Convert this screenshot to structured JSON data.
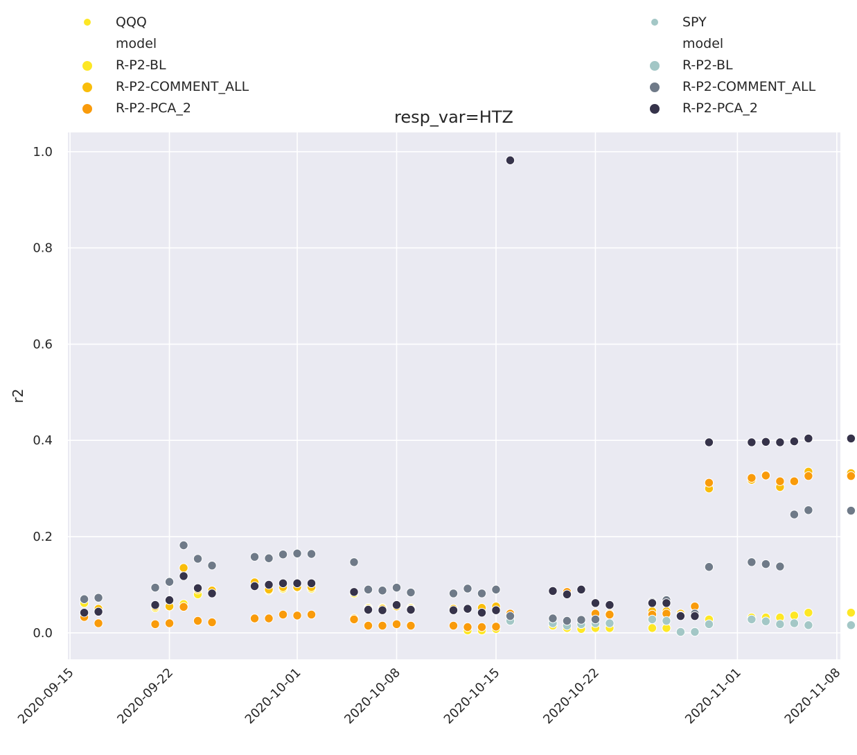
{
  "chart_data": {
    "type": "scatter",
    "title": "resp_var=HTZ",
    "xlabel": "",
    "ylabel": "r2",
    "xlim": [
      "2020-09-15",
      "2020-11-08"
    ],
    "ylim": [
      -0.055,
      1.04
    ],
    "x_ticks": [
      "2020-09-15",
      "2020-09-22",
      "2020-10-01",
      "2020-10-08",
      "2020-10-15",
      "2020-10-22",
      "2020-11-01",
      "2020-11-08"
    ],
    "y_ticks": [
      "0.0",
      "0.2",
      "0.4",
      "0.6",
      "0.8",
      "1.0"
    ],
    "y_tick_values": [
      0.0,
      0.2,
      0.4,
      0.6,
      0.8,
      1.0
    ],
    "grid": true,
    "background": "#eaeaf2",
    "legends": [
      {
        "placement": "top-left",
        "index_label": "QQQ",
        "index_color": "#fde725",
        "model_title": "model",
        "entries": [
          {
            "label": "R-P2-BL",
            "color": "#fde725"
          },
          {
            "label": "R-P2-COMMENT_ALL",
            "color": "#f9bd0b"
          },
          {
            "label": "R-P2-PCA_2",
            "color": "#f99b0b"
          }
        ]
      },
      {
        "placement": "top-right",
        "index_label": "SPY",
        "index_color": "#a3c7c6",
        "model_title": "model",
        "entries": [
          {
            "label": "R-P2-BL",
            "color": "#a3c7c6"
          },
          {
            "label": "R-P2-COMMENT_ALL",
            "color": "#6f7a88"
          },
          {
            "label": "R-P2-PCA_2",
            "color": "#36334a"
          }
        ]
      }
    ],
    "series": [
      {
        "index": "QQQ",
        "model": "R-P2-BL",
        "color": "#fde725",
        "points": [
          [
            "2020-09-16",
            0.062
          ],
          [
            "2020-09-17",
            0.045
          ],
          [
            "2020-09-21",
            0.052
          ],
          [
            "2020-09-22",
            0.055
          ],
          [
            "2020-09-23",
            0.06
          ],
          [
            "2020-09-24",
            0.08
          ],
          [
            "2020-09-25",
            0.088
          ],
          [
            "2020-09-28",
            0.105
          ],
          [
            "2020-09-29",
            0.088
          ],
          [
            "2020-09-30",
            0.092
          ],
          [
            "2020-10-01",
            0.094
          ],
          [
            "2020-10-02",
            0.092
          ],
          [
            "2020-10-05",
            0.082
          ],
          [
            "2020-10-06",
            0.052
          ],
          [
            "2020-10-07",
            0.052
          ],
          [
            "2020-10-08",
            0.055
          ],
          [
            "2020-10-09",
            0.052
          ],
          [
            "2020-10-12",
            0.05
          ],
          [
            "2020-10-13",
            0.005
          ],
          [
            "2020-10-14",
            0.005
          ],
          [
            "2020-10-15",
            0.008
          ],
          [
            "2020-10-16",
            0.04
          ],
          [
            "2020-10-19",
            0.015
          ],
          [
            "2020-10-20",
            0.01
          ],
          [
            "2020-10-21",
            0.008
          ],
          [
            "2020-10-22",
            0.01
          ],
          [
            "2020-10-23",
            0.01
          ],
          [
            "2020-10-26",
            0.01
          ],
          [
            "2020-10-27",
            0.01
          ],
          [
            "2020-10-28",
            0.04
          ],
          [
            "2020-10-29",
            0.002
          ],
          [
            "2020-10-30",
            0.028
          ],
          [
            "2020-11-02",
            0.032
          ],
          [
            "2020-11-03",
            0.032
          ],
          [
            "2020-11-04",
            0.032
          ],
          [
            "2020-11-05",
            0.036
          ],
          [
            "2020-11-06",
            0.042
          ],
          [
            "2020-11-09",
            0.042
          ]
        ]
      },
      {
        "index": "QQQ",
        "model": "R-P2-COMMENT_ALL",
        "color": "#f9bd0b",
        "points": [
          [
            "2020-09-16",
            0.035
          ],
          [
            "2020-09-17",
            0.05
          ],
          [
            "2020-09-21",
            0.055
          ],
          [
            "2020-09-22",
            0.055
          ],
          [
            "2020-09-23",
            0.135
          ],
          [
            "2020-09-24",
            0.09
          ],
          [
            "2020-09-25",
            0.088
          ],
          [
            "2020-09-28",
            0.105
          ],
          [
            "2020-09-29",
            0.09
          ],
          [
            "2020-09-30",
            0.095
          ],
          [
            "2020-10-01",
            0.095
          ],
          [
            "2020-10-02",
            0.095
          ],
          [
            "2020-10-05",
            0.03
          ],
          [
            "2020-10-06",
            0.05
          ],
          [
            "2020-10-07",
            0.05
          ],
          [
            "2020-10-08",
            0.055
          ],
          [
            "2020-10-09",
            0.05
          ],
          [
            "2020-10-12",
            0.05
          ],
          [
            "2020-10-13",
            0.05
          ],
          [
            "2020-10-14",
            0.052
          ],
          [
            "2020-10-15",
            0.055
          ],
          [
            "2020-10-16",
            0.04
          ],
          [
            "2020-10-19",
            0.02
          ],
          [
            "2020-10-20",
            0.085
          ],
          [
            "2020-10-21",
            0.02
          ],
          [
            "2020-10-22",
            0.04
          ],
          [
            "2020-10-23",
            0.04
          ],
          [
            "2020-10-26",
            0.045
          ],
          [
            "2020-10-27",
            0.045
          ],
          [
            "2020-10-28",
            0.04
          ],
          [
            "2020-10-29",
            0.055
          ],
          [
            "2020-10-30",
            0.3
          ],
          [
            "2020-11-02",
            0.318
          ],
          [
            "2020-11-03",
            0.328
          ],
          [
            "2020-11-04",
            0.303
          ],
          [
            "2020-11-05",
            0.315
          ],
          [
            "2020-11-06",
            0.335
          ],
          [
            "2020-11-09",
            0.332
          ]
        ]
      },
      {
        "index": "QQQ",
        "model": "R-P2-PCA_2",
        "color": "#f99b0b",
        "points": [
          [
            "2020-09-16",
            0.033
          ],
          [
            "2020-09-17",
            0.02
          ],
          [
            "2020-09-21",
            0.018
          ],
          [
            "2020-09-22",
            0.02
          ],
          [
            "2020-09-23",
            0.054
          ],
          [
            "2020-09-24",
            0.025
          ],
          [
            "2020-09-25",
            0.022
          ],
          [
            "2020-09-28",
            0.03
          ],
          [
            "2020-09-29",
            0.03
          ],
          [
            "2020-09-30",
            0.038
          ],
          [
            "2020-10-01",
            0.036
          ],
          [
            "2020-10-02",
            0.038
          ],
          [
            "2020-10-05",
            0.028
          ],
          [
            "2020-10-06",
            0.015
          ],
          [
            "2020-10-07",
            0.015
          ],
          [
            "2020-10-08",
            0.018
          ],
          [
            "2020-10-09",
            0.015
          ],
          [
            "2020-10-12",
            0.015
          ],
          [
            "2020-10-13",
            0.012
          ],
          [
            "2020-10-14",
            0.012
          ],
          [
            "2020-10-15",
            0.013
          ],
          [
            "2020-10-16",
            0.04
          ],
          [
            "2020-10-19",
            0.02
          ],
          [
            "2020-10-20",
            0.085
          ],
          [
            "2020-10-21",
            0.02
          ],
          [
            "2020-10-22",
            0.04
          ],
          [
            "2020-10-23",
            0.038
          ],
          [
            "2020-10-26",
            0.038
          ],
          [
            "2020-10-27",
            0.04
          ],
          [
            "2020-10-28",
            0.035
          ],
          [
            "2020-10-29",
            0.055
          ],
          [
            "2020-10-30",
            0.312
          ],
          [
            "2020-11-02",
            0.322
          ],
          [
            "2020-11-03",
            0.327
          ],
          [
            "2020-11-04",
            0.315
          ],
          [
            "2020-11-05",
            0.315
          ],
          [
            "2020-11-06",
            0.326
          ],
          [
            "2020-11-09",
            0.326
          ]
        ]
      },
      {
        "index": "SPY",
        "model": "R-P2-BL",
        "color": "#a3c7c6",
        "points": [
          [
            "2020-10-16",
            0.025
          ],
          [
            "2020-10-19",
            0.02
          ],
          [
            "2020-10-20",
            0.015
          ],
          [
            "2020-10-21",
            0.018
          ],
          [
            "2020-10-22",
            0.02
          ],
          [
            "2020-10-23",
            0.02
          ],
          [
            "2020-10-26",
            0.028
          ],
          [
            "2020-10-27",
            0.025
          ],
          [
            "2020-10-28",
            0.002
          ],
          [
            "2020-10-29",
            0.002
          ],
          [
            "2020-10-30",
            0.018
          ],
          [
            "2020-11-02",
            0.028
          ],
          [
            "2020-11-03",
            0.024
          ],
          [
            "2020-11-04",
            0.018
          ],
          [
            "2020-11-05",
            0.02
          ],
          [
            "2020-11-06",
            0.016
          ],
          [
            "2020-11-09",
            0.016
          ]
        ]
      },
      {
        "index": "SPY",
        "model": "R-P2-COMMENT_ALL",
        "color": "#6f7a88",
        "points": [
          [
            "2020-09-16",
            0.07
          ],
          [
            "2020-09-17",
            0.073
          ],
          [
            "2020-09-21",
            0.094
          ],
          [
            "2020-09-22",
            0.106
          ],
          [
            "2020-09-23",
            0.182
          ],
          [
            "2020-09-24",
            0.154
          ],
          [
            "2020-09-25",
            0.14
          ],
          [
            "2020-09-28",
            0.158
          ],
          [
            "2020-09-29",
            0.155
          ],
          [
            "2020-09-30",
            0.163
          ],
          [
            "2020-10-01",
            0.165
          ],
          [
            "2020-10-02",
            0.164
          ],
          [
            "2020-10-05",
            0.147
          ],
          [
            "2020-10-06",
            0.09
          ],
          [
            "2020-10-07",
            0.088
          ],
          [
            "2020-10-08",
            0.094
          ],
          [
            "2020-10-09",
            0.084
          ],
          [
            "2020-10-12",
            0.082
          ],
          [
            "2020-10-13",
            0.092
          ],
          [
            "2020-10-14",
            0.082
          ],
          [
            "2020-10-15",
            0.09
          ],
          [
            "2020-10-16",
            0.035
          ],
          [
            "2020-10-19",
            0.03
          ],
          [
            "2020-10-20",
            0.025
          ],
          [
            "2020-10-21",
            0.027
          ],
          [
            "2020-10-22",
            0.028
          ],
          [
            "2020-10-26",
            0.064
          ],
          [
            "2020-10-27",
            0.068
          ],
          [
            "2020-10-28",
            0.036
          ],
          [
            "2020-10-29",
            0.04
          ],
          [
            "2020-10-30",
            0.137
          ],
          [
            "2020-11-02",
            0.147
          ],
          [
            "2020-11-03",
            0.143
          ],
          [
            "2020-11-04",
            0.138
          ],
          [
            "2020-11-05",
            0.246
          ],
          [
            "2020-11-06",
            0.255
          ],
          [
            "2020-11-09",
            0.254
          ]
        ]
      },
      {
        "index": "SPY",
        "model": "R-P2-PCA_2",
        "color": "#36334a",
        "points": [
          [
            "2020-09-16",
            0.042
          ],
          [
            "2020-09-17",
            0.044
          ],
          [
            "2020-09-21",
            0.058
          ],
          [
            "2020-09-22",
            0.068
          ],
          [
            "2020-09-23",
            0.118
          ],
          [
            "2020-09-24",
            0.093
          ],
          [
            "2020-09-25",
            0.082
          ],
          [
            "2020-09-28",
            0.097
          ],
          [
            "2020-09-29",
            0.1
          ],
          [
            "2020-09-30",
            0.103
          ],
          [
            "2020-10-01",
            0.103
          ],
          [
            "2020-10-02",
            0.103
          ],
          [
            "2020-10-05",
            0.085
          ],
          [
            "2020-10-06",
            0.048
          ],
          [
            "2020-10-07",
            0.047
          ],
          [
            "2020-10-08",
            0.058
          ],
          [
            "2020-10-09",
            0.048
          ],
          [
            "2020-10-12",
            0.047
          ],
          [
            "2020-10-13",
            0.05
          ],
          [
            "2020-10-14",
            0.042
          ],
          [
            "2020-10-15",
            0.047
          ],
          [
            "2020-10-16",
            0.982
          ],
          [
            "2020-10-19",
            0.087
          ],
          [
            "2020-10-20",
            0.08
          ],
          [
            "2020-10-21",
            0.09
          ],
          [
            "2020-10-22",
            0.062
          ],
          [
            "2020-10-23",
            0.058
          ],
          [
            "2020-10-26",
            0.062
          ],
          [
            "2020-10-27",
            0.062
          ],
          [
            "2020-10-28",
            0.035
          ],
          [
            "2020-10-29",
            0.035
          ],
          [
            "2020-10-30",
            0.396
          ],
          [
            "2020-11-02",
            0.396
          ],
          [
            "2020-11-03",
            0.397
          ],
          [
            "2020-11-04",
            0.396
          ],
          [
            "2020-11-05",
            0.398
          ],
          [
            "2020-11-06",
            0.404
          ],
          [
            "2020-11-09",
            0.404
          ]
        ]
      }
    ]
  }
}
